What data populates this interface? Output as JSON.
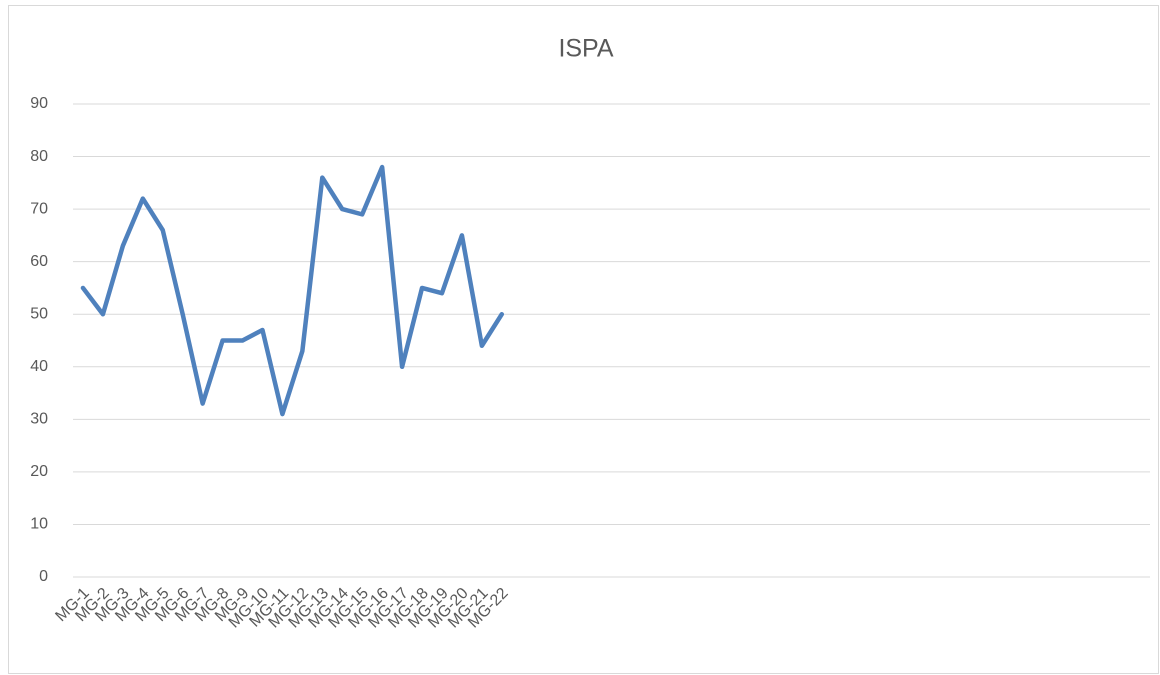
{
  "chart_data": {
    "type": "line",
    "title": "ISPA",
    "categories": [
      "MG-1",
      "MG-2",
      "MG-3",
      "MG-4",
      "MG-5",
      "MG-6",
      "MG-7",
      "MG-8",
      "MG-9",
      "MG-10",
      "MG-11",
      "MG-12",
      "MG-13",
      "MG-14",
      "MG-15",
      "MG-16",
      "MG-17",
      "MG-18",
      "MG-19",
      "MG-20",
      "MG-21",
      "MG-22",
      null,
      null,
      null,
      null,
      null,
      null,
      null,
      null,
      null,
      null,
      null,
      null,
      null,
      null,
      null,
      null,
      null,
      null,
      null,
      null,
      null,
      null,
      null,
      null,
      null,
      null,
      null,
      null,
      null,
      null,
      null,
      null
    ],
    "series": [
      {
        "name": "ISPA",
        "color": "#4f81bd",
        "values": [
          55,
          50,
          63,
          72,
          66,
          50,
          33,
          45,
          45,
          47,
          31,
          43,
          76,
          70,
          69,
          78,
          40,
          55,
          54,
          65,
          44,
          50,
          null,
          null,
          null,
          null,
          null,
          null,
          null,
          null,
          null,
          null,
          null,
          null,
          null,
          null,
          null,
          null,
          null,
          null,
          null,
          null,
          null,
          null,
          null,
          null,
          null,
          null,
          null,
          null,
          null,
          null,
          null,
          null
        ]
      }
    ],
    "ylim": [
      0,
      90
    ],
    "yticks": [
      0,
      10,
      20,
      30,
      40,
      50,
      60,
      70,
      80,
      90
    ],
    "grid": true
  }
}
